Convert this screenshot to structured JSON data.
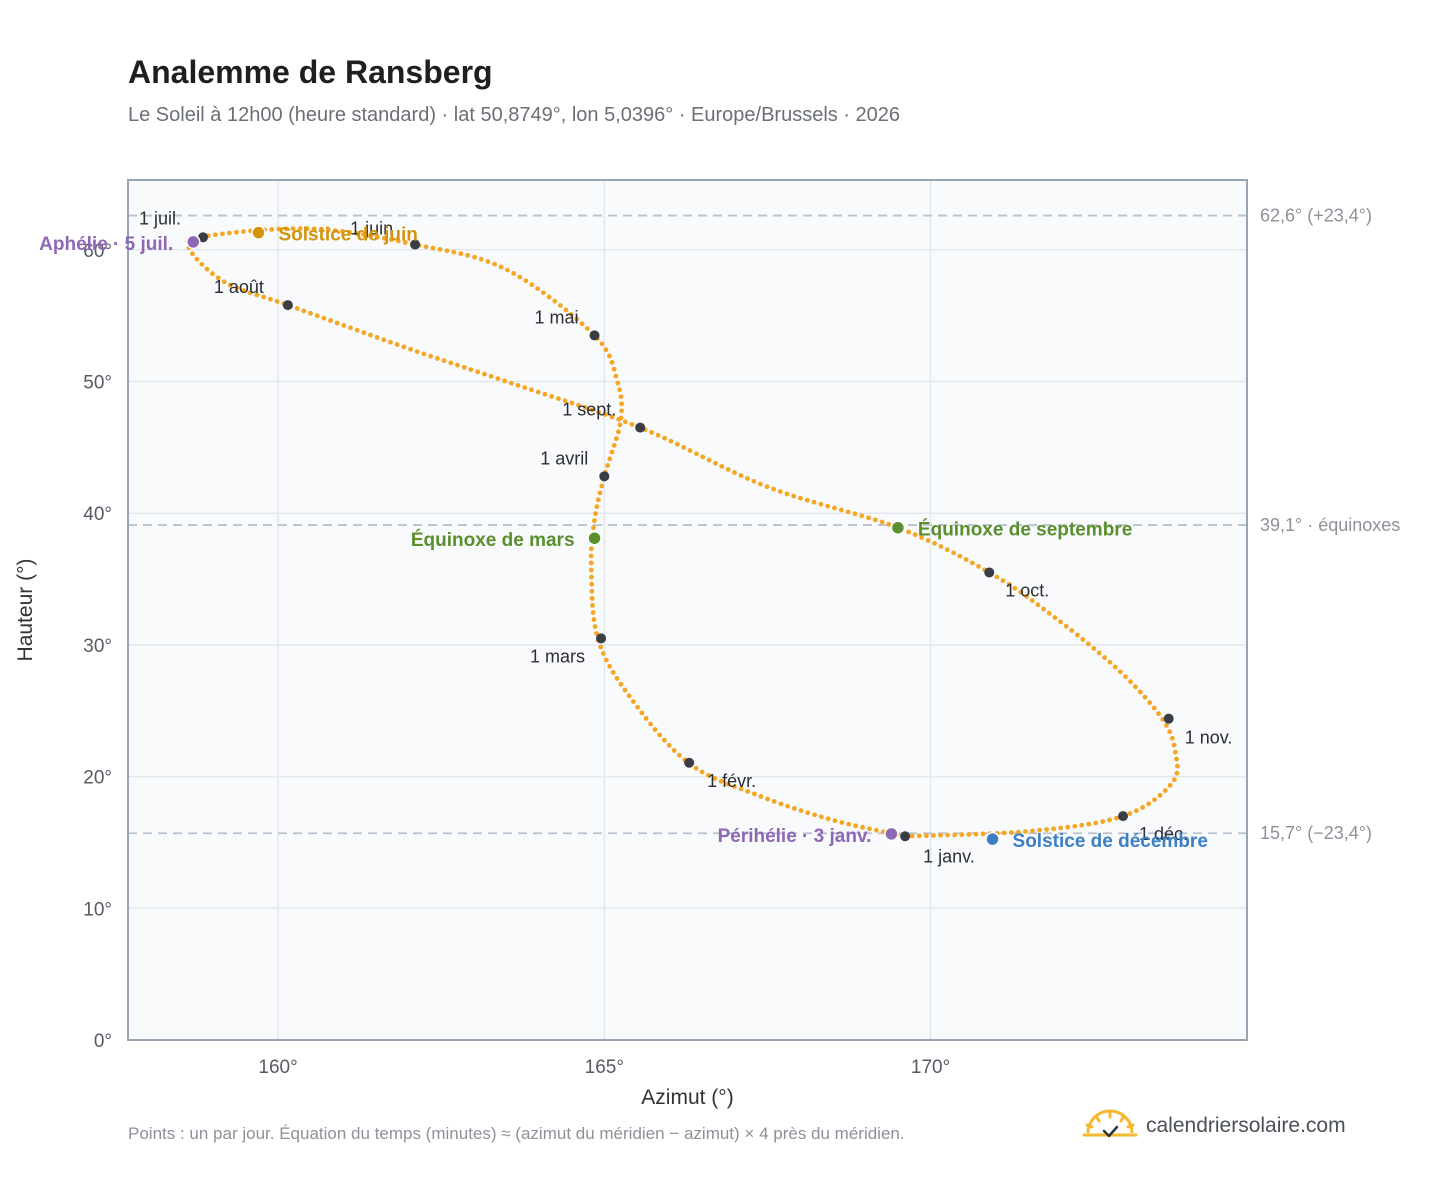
{
  "header": {
    "title": "Analemme de Ransberg",
    "subtitle": "Le Soleil à 12h00 (heure standard) · lat 50,8749°, lon 5,0396° · Europe/Brussels · 2026"
  },
  "footer": {
    "note": "Points : un par jour. Équation du temps (minutes) ≈ (azimut du méridien − azimut) × 4 près du méridien.",
    "brand": "calendriersolaire.com"
  },
  "colors": {
    "curve": "#f5a623",
    "month_dot": "#3a3d45",
    "solstice_june": "#d4950c",
    "solstice_december": "#3b7fc4",
    "equinox": "#5a8f2e",
    "apsis": "#8e68b5",
    "reference_line": "#b9c2cf",
    "plot_bg": "#f8fafc",
    "plot_border": "#9aa5b4"
  },
  "chart_data": {
    "type": "scatter",
    "title": "Analemme de Ransberg",
    "xlabel": "Azimut (°)",
    "ylabel": "Hauteur (°)",
    "xlim": [
      157.7,
      174.85
    ],
    "ylim": [
      0,
      65.3
    ],
    "x_ticks": [
      160,
      165,
      170
    ],
    "x_tick_labels": [
      "160°",
      "165°",
      "170°"
    ],
    "y_ticks": [
      0,
      10,
      20,
      30,
      40,
      50,
      60
    ],
    "y_tick_labels": [
      "0°",
      "10°",
      "20°",
      "30°",
      "40°",
      "50°",
      "60°"
    ],
    "grid": true,
    "reference_lines": [
      {
        "y": 62.6,
        "label": "62,6° (+23,4°)"
      },
      {
        "y": 39.1,
        "label": "39,1° · équinoxes"
      },
      {
        "y": 15.7,
        "label": "15,7° (−23,4°)"
      }
    ],
    "analemma_path": [
      [
        169.61,
        15.47
      ],
      [
        171.5,
        15.85
      ],
      [
        172.95,
        17.0
      ],
      [
        173.7,
        19.5
      ],
      [
        173.75,
        21.9
      ],
      [
        173.55,
        24.4
      ],
      [
        172.9,
        28.0
      ],
      [
        171.9,
        32.1
      ],
      [
        170.9,
        35.5
      ],
      [
        169.5,
        38.9
      ],
      [
        167.5,
        42.0
      ],
      [
        165.55,
        46.5
      ],
      [
        163.5,
        50.0
      ],
      [
        162.0,
        52.5
      ],
      [
        160.15,
        55.8
      ],
      [
        159.2,
        57.5
      ],
      [
        158.65,
        60.0
      ],
      [
        158.85,
        61.0
      ],
      [
        160.5,
        61.6
      ],
      [
        162.1,
        60.4
      ],
      [
        163.5,
        58.5
      ],
      [
        164.85,
        53.5
      ],
      [
        165.2,
        50.0
      ],
      [
        165.25,
        47.0
      ],
      [
        165.0,
        42.8
      ],
      [
        164.85,
        39.5
      ],
      [
        164.8,
        36.0
      ],
      [
        164.9,
        30.5
      ],
      [
        165.4,
        26.0
      ],
      [
        166.3,
        21.0
      ],
      [
        167.4,
        18.5
      ],
      [
        168.5,
        16.7
      ],
      [
        169.61,
        15.47
      ]
    ],
    "month_markers": [
      {
        "label": "1 janv.",
        "x": 169.61,
        "y": 15.47
      },
      {
        "label": "1 févr.",
        "x": 166.3,
        "y": 21.05
      },
      {
        "label": "1 mars",
        "x": 164.95,
        "y": 30.5
      },
      {
        "label": "1 avril",
        "x": 165.0,
        "y": 42.8
      },
      {
        "label": "1 mai",
        "x": 164.85,
        "y": 53.5
      },
      {
        "label": "1 juin",
        "x": 162.1,
        "y": 60.4
      },
      {
        "label": "1 juil.",
        "x": 158.85,
        "y": 60.95
      },
      {
        "label": "1 août",
        "x": 160.15,
        "y": 55.8
      },
      {
        "label": "1 sept.",
        "x": 165.55,
        "y": 46.5
      },
      {
        "label": "1 oct.",
        "x": 170.9,
        "y": 35.5
      },
      {
        "label": "1 nov.",
        "x": 173.65,
        "y": 24.4
      },
      {
        "label": "1 déc.",
        "x": 172.95,
        "y": 17.0
      }
    ],
    "events": [
      {
        "label": "Solstice de juin",
        "x": 159.7,
        "y": 61.3,
        "color_key": "solstice_june"
      },
      {
        "label": "Solstice de décembre",
        "x": 170.95,
        "y": 15.25,
        "color_key": "solstice_december"
      },
      {
        "label": "Équinoxe de mars",
        "x": 164.85,
        "y": 38.1,
        "color_key": "equinox"
      },
      {
        "label": "Équinoxe de septembre",
        "x": 169.5,
        "y": 38.9,
        "color_key": "equinox"
      },
      {
        "label": "Aphélie · 5 juil.",
        "x": 158.7,
        "y": 60.6,
        "color_key": "apsis"
      },
      {
        "label": "Périhélie · 3 janv.",
        "x": 169.4,
        "y": 15.65,
        "color_key": "apsis"
      }
    ]
  }
}
